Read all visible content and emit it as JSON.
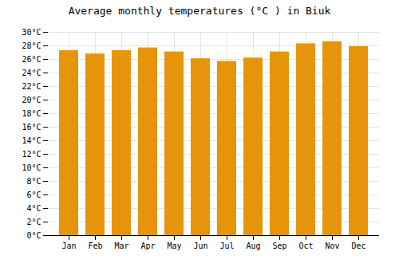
{
  "chart_data": {
    "type": "bar",
    "title": "Average monthly temperatures (°C ) in Biuk",
    "categories": [
      "Jan",
      "Feb",
      "Mar",
      "Apr",
      "May",
      "Jun",
      "Jul",
      "Aug",
      "Sep",
      "Oct",
      "Nov",
      "Dec"
    ],
    "values": [
      27.3,
      26.8,
      27.3,
      27.7,
      27.1,
      26.1,
      25.7,
      26.2,
      27.1,
      28.3,
      28.6,
      27.9
    ],
    "color": "#E6950A",
    "ylim": [
      0,
      30
    ],
    "yticks": [
      {
        "value": 0,
        "label": "0°C"
      },
      {
        "value": 2,
        "label": "2°C"
      },
      {
        "value": 4,
        "label": "4°C"
      },
      {
        "value": 6,
        "label": "6°C"
      },
      {
        "value": 8,
        "label": "8°C"
      },
      {
        "value": 10,
        "label": "10°C"
      },
      {
        "value": 12,
        "label": "12°C"
      },
      {
        "value": 14,
        "label": "14°C"
      },
      {
        "value": 16,
        "label": "16°C"
      },
      {
        "value": 18,
        "label": "18°C"
      },
      {
        "value": 20,
        "label": "20°C"
      },
      {
        "value": 22,
        "label": "22°C"
      },
      {
        "value": 24,
        "label": "24°C"
      },
      {
        "value": 26,
        "label": "26°C"
      },
      {
        "value": 28,
        "label": "28°C"
      },
      {
        "value": 30,
        "label": "30°C"
      }
    ],
    "grid": true
  }
}
